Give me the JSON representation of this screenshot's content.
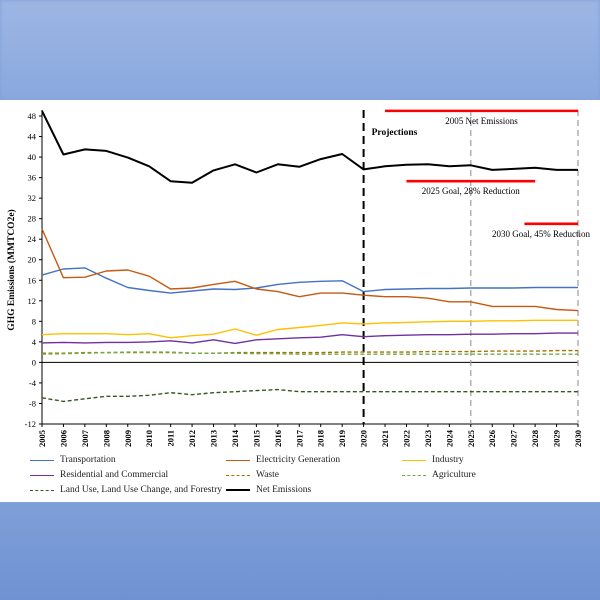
{
  "chart_data": {
    "type": "line",
    "ylabel": "GHG Emissions (MMTCO2e)",
    "xlabel": "",
    "ylim": [
      -12,
      48
    ],
    "yticks": [
      -12,
      -8,
      -4,
      0,
      4,
      8,
      12,
      16,
      20,
      24,
      28,
      32,
      36,
      40,
      44,
      48
    ],
    "x": [
      2005,
      2006,
      2007,
      2008,
      2009,
      2010,
      2011,
      2012,
      2013,
      2014,
      2015,
      2016,
      2017,
      2018,
      2019,
      2020,
      2021,
      2022,
      2023,
      2024,
      2025,
      2026,
      2027,
      2028,
      2029,
      2030
    ],
    "projection_start": 2020,
    "projection_label": "Projections",
    "reference_years": [
      2025,
      2030
    ],
    "series": [
      {
        "name": "Transportation",
        "color": "#4472c4",
        "dash": false,
        "values": [
          17.0,
          18.2,
          18.4,
          16.4,
          14.6,
          14.0,
          13.5,
          13.9,
          14.3,
          14.2,
          14.5,
          15.2,
          15.6,
          15.8,
          15.9,
          13.8,
          14.2,
          14.3,
          14.4,
          14.4,
          14.5,
          14.5,
          14.5,
          14.6,
          14.6,
          14.6
        ]
      },
      {
        "name": "Electricity Generation",
        "color": "#c55a11",
        "dash": false,
        "values": [
          26.0,
          16.5,
          16.6,
          17.8,
          18.0,
          16.8,
          14.3,
          14.5,
          15.2,
          15.8,
          14.3,
          13.8,
          12.8,
          13.5,
          13.5,
          13.1,
          12.8,
          12.8,
          12.5,
          11.8,
          11.8,
          10.9,
          10.9,
          10.9,
          10.3,
          10.1
        ]
      },
      {
        "name": "Industry",
        "color": "#ffc000",
        "dash": false,
        "values": [
          5.4,
          5.6,
          5.6,
          5.6,
          5.4,
          5.6,
          4.8,
          5.2,
          5.5,
          6.5,
          5.3,
          6.4,
          6.8,
          7.2,
          7.7,
          7.5,
          7.7,
          7.8,
          7.9,
          8.0,
          8.0,
          8.1,
          8.1,
          8.2,
          8.2,
          8.2
        ]
      },
      {
        "name": "Residential and Commercial",
        "color": "#7030a0",
        "dash": false,
        "values": [
          3.8,
          3.9,
          3.8,
          3.9,
          3.9,
          4.0,
          4.2,
          3.8,
          4.4,
          3.7,
          4.4,
          4.6,
          4.8,
          4.9,
          5.4,
          5.0,
          5.2,
          5.3,
          5.4,
          5.4,
          5.5,
          5.5,
          5.6,
          5.6,
          5.7,
          5.7
        ]
      },
      {
        "name": "Waste",
        "color": "#a87000",
        "dash": true,
        "values": [
          1.8,
          1.8,
          1.9,
          1.9,
          1.9,
          1.9,
          1.9,
          1.8,
          1.8,
          1.9,
          1.9,
          1.9,
          1.9,
          1.9,
          2.0,
          2.0,
          2.0,
          2.0,
          2.1,
          2.1,
          2.1,
          2.2,
          2.2,
          2.2,
          2.3,
          2.3
        ]
      },
      {
        "name": "Agriculture",
        "color": "#70ad47",
        "dash": true,
        "values": [
          1.6,
          1.7,
          1.8,
          1.9,
          2.0,
          2.0,
          2.0,
          1.8,
          1.8,
          1.8,
          1.7,
          1.7,
          1.6,
          1.6,
          1.6,
          1.6,
          1.6,
          1.6,
          1.6,
          1.6,
          1.6,
          1.6,
          1.6,
          1.6,
          1.6,
          1.6
        ]
      },
      {
        "name": "Land Use, Land Use Change, and Forestry",
        "color": "#375623",
        "dash": true,
        "values": [
          -6.9,
          -7.6,
          -7.1,
          -6.6,
          -6.6,
          -6.4,
          -5.9,
          -6.3,
          -5.9,
          -5.7,
          -5.5,
          -5.3,
          -5.7,
          -5.7,
          -5.7,
          -5.7,
          -5.7,
          -5.7,
          -5.7,
          -5.7,
          -5.7,
          -5.7,
          -5.7,
          -5.7,
          -5.7,
          -5.7
        ]
      },
      {
        "name": "Net Emissions",
        "color": "#000000",
        "dash": false,
        "values": [
          49.0,
          40.5,
          41.5,
          41.2,
          39.9,
          38.2,
          35.3,
          35.0,
          37.4,
          38.6,
          37.0,
          38.6,
          38.1,
          39.6,
          40.6,
          37.6,
          38.2,
          38.5,
          38.6,
          38.2,
          38.4,
          37.5,
          37.7,
          37.9,
          37.5,
          37.5
        ]
      }
    ],
    "goals": [
      {
        "label": "2005 Net Emissions",
        "value": 49.0,
        "x_start": 2021,
        "x_end": 2030
      },
      {
        "label": "2025 Goal, 28% Reduction",
        "value": 35.3,
        "x_start": 2022,
        "x_end": 2028
      },
      {
        "label": "2030 Goal, 45% Reduction",
        "value": 27.0,
        "x_start": 2027.5,
        "x_end": 2030
      }
    ],
    "legend": [
      "Transportation",
      "Electricity Generation",
      "Industry",
      "Residential and Commercial",
      "Waste",
      "Agriculture",
      "Land Use, Land Use Change, and Forestry",
      "Net Emissions"
    ]
  }
}
